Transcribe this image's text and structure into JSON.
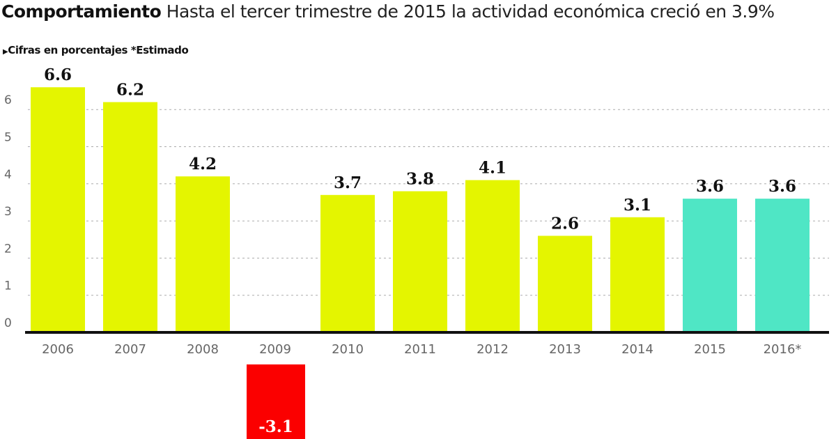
{
  "chart_data": {
    "type": "bar",
    "title_bold": "Comportamiento",
    "title": "Hasta el tercer trimestre de 2015 la actividad económica creció en 3.9%",
    "subtitle": "Cifras en porcentajes *Estimado",
    "categories": [
      "2006",
      "2007",
      "2008",
      "2009",
      "2010",
      "2011",
      "2012",
      "2013",
      "2014",
      "2015",
      "2016*"
    ],
    "values": [
      6.6,
      6.2,
      4.2,
      -3.1,
      3.7,
      3.8,
      4.1,
      2.6,
      3.1,
      3.6,
      3.6
    ],
    "value_labels": [
      "6.6",
      "6.2",
      "4.2",
      "-3.1",
      "3.7",
      "3.8",
      "4.1",
      "2.6",
      "3.1",
      "3.6",
      "3.6"
    ],
    "estimated": [
      false,
      false,
      false,
      false,
      false,
      false,
      false,
      false,
      false,
      true,
      true
    ],
    "yticks": [
      "0",
      "1",
      "2",
      "3",
      "4",
      "5",
      "6"
    ],
    "ylim": [
      0,
      6.6
    ],
    "grid": true,
    "colors": {
      "actual": "#e4f500",
      "estimated": "#4fe6c5",
      "negative": "#fb0000",
      "axis": "#111111",
      "grid": "#aaaaaa"
    }
  }
}
